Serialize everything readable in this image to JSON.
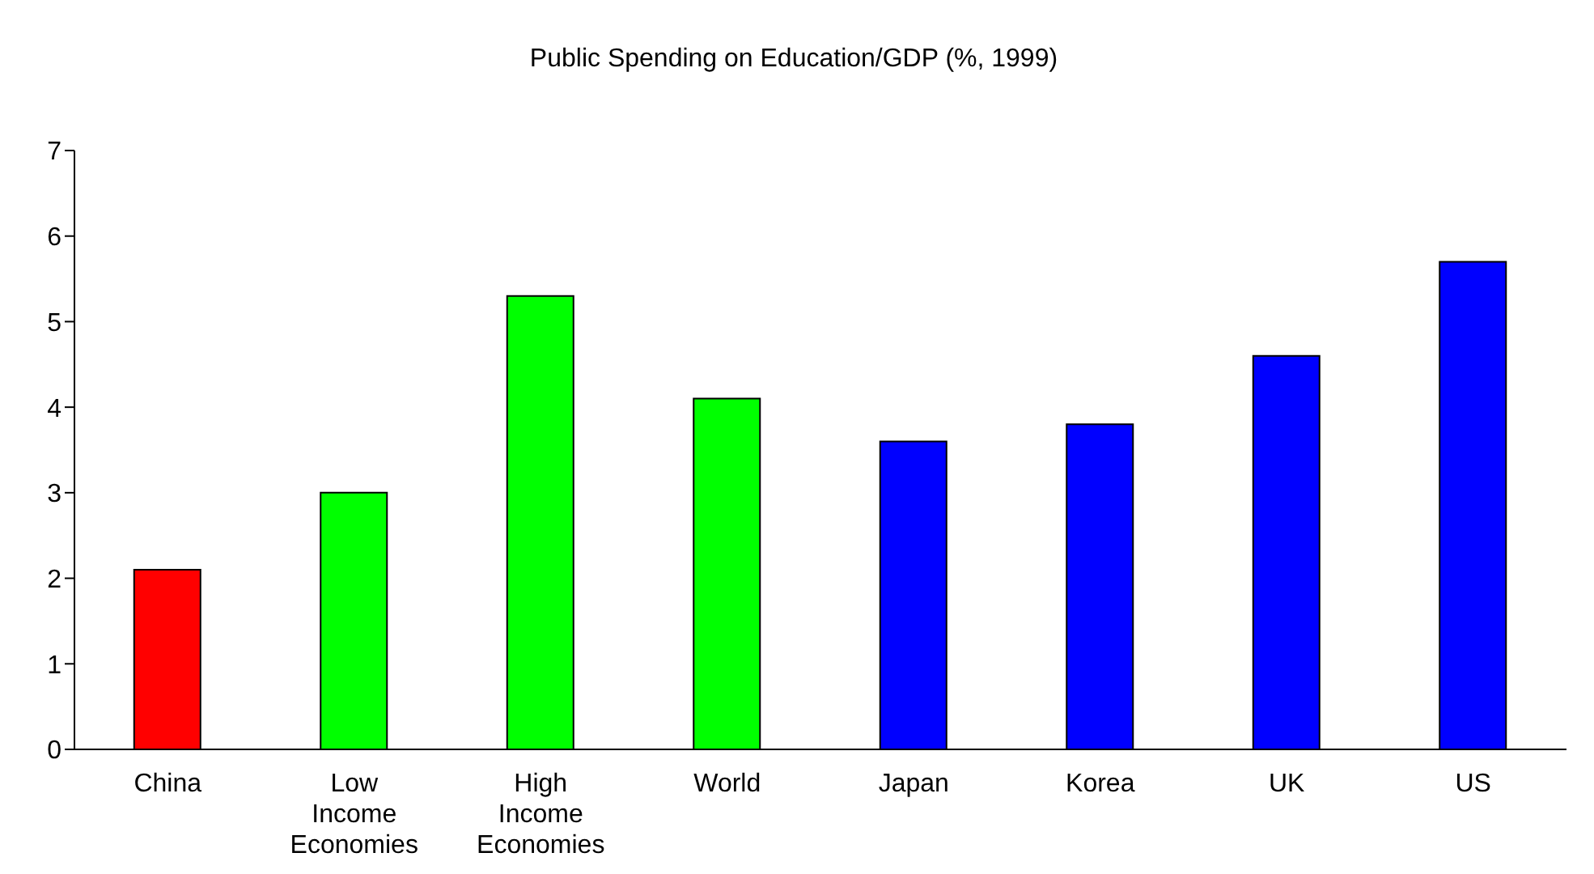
{
  "chart_data": {
    "type": "bar",
    "title": "Public Spending on Education/GDP (%, 1999)",
    "categories": [
      "China",
      "Low Income Economies",
      "High Income Economies",
      "World",
      "Japan",
      "Korea",
      "UK",
      "US"
    ],
    "values": [
      2.1,
      3.0,
      5.3,
      4.1,
      3.6,
      3.8,
      4.6,
      5.7
    ],
    "colors": [
      "#ff0000",
      "#00ff00",
      "#00ff00",
      "#00ff00",
      "#0000ff",
      "#0000ff",
      "#0000ff",
      "#0000ff"
    ],
    "ylim": [
      0,
      7
    ],
    "yticks": [
      0,
      1,
      2,
      3,
      4,
      5,
      6,
      7
    ],
    "grid": false,
    "legend": false
  }
}
